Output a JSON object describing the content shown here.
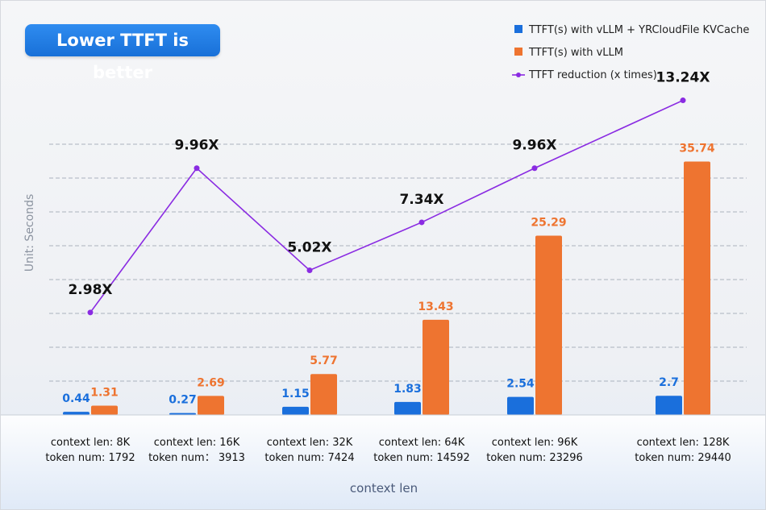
{
  "chart_data": {
    "type": "bar",
    "title": "Lower TTFT is better",
    "ylabel": "Unit: Seconds",
    "xlabel": "context len",
    "categories": [
      [
        "context len: 8K",
        "token num: 1792"
      ],
      [
        "context len: 16K",
        "token num： 3913"
      ],
      [
        "context len: 32K",
        "token num: 7424"
      ],
      [
        "context len: 64K",
        "token num: 14592"
      ],
      [
        "context len: 96K",
        "token num: 23296"
      ],
      [
        "context len: 128K",
        "token num: 29440"
      ]
    ],
    "series": [
      {
        "name": "TTFT(s) with vLLM + YRCloudFile KVCache",
        "kind": "bar",
        "color": "#1a6fdc",
        "values": [
          0.44,
          0.27,
          1.15,
          1.83,
          2.54,
          2.7
        ],
        "labels": [
          "0.44",
          "0.27",
          "1.15",
          "1.83",
          "2.54",
          "2.7"
        ]
      },
      {
        "name": "TTFT(s) with vLLM",
        "kind": "bar",
        "color": "#ee7430",
        "values": [
          1.31,
          2.69,
          5.77,
          13.43,
          25.29,
          35.74
        ],
        "labels": [
          "1.31",
          "2.69",
          "5.77",
          "13.43",
          "25.29",
          "35.74"
        ]
      },
      {
        "name": "TTFT reduction (x times)",
        "kind": "line",
        "color": "#8a2be2",
        "values": [
          2.98,
          9.96,
          5.02,
          7.34,
          9.96,
          13.24
        ],
        "labels": [
          "2.98X",
          "9.96X",
          "5.02X",
          "7.34X",
          "9.96X",
          "13.24X"
        ]
      }
    ],
    "ylim": [
      0,
      40
    ],
    "grid": true,
    "legend": "top-right"
  }
}
